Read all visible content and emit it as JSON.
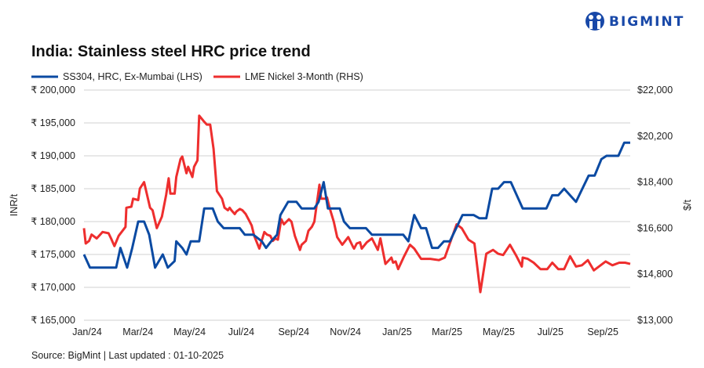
{
  "logo": {
    "text": "BIGMINT",
    "color": "#1848a8"
  },
  "chart_data": {
    "type": "line",
    "title": "India: Stainless steel HRC price trend",
    "source": "Source: BigMint | Last updated : 01-10-2025",
    "ylabel_left": "INR/t",
    "ylabel_right": "$/t",
    "left_axis": {
      "min": 165000,
      "max": 200000,
      "ticks": [
        165000,
        170000,
        175000,
        180000,
        185000,
        190000,
        195000,
        200000
      ],
      "tick_labels": [
        "₹ 165,000",
        "₹ 170,000",
        "₹ 175,000",
        "₹ 180,000",
        "₹ 185,000",
        "₹ 190,000",
        "₹ 195,000",
        "₹ 200,000"
      ]
    },
    "right_axis": {
      "min": 13000,
      "max": 22000,
      "ticks": [
        13000,
        14800,
        16600,
        18400,
        20200,
        22000
      ],
      "tick_labels": [
        "$13,000",
        "$14,800",
        "$16,600",
        "$18,400",
        "$20,200",
        "$22,000"
      ]
    },
    "x_axis": {
      "min": "2024-01-01",
      "max": "2025-10-07",
      "ticks": [
        "2024-01-01",
        "2024-03-01",
        "2024-05-01",
        "2024-07-01",
        "2024-09-01",
        "2024-11-01",
        "2025-01-01",
        "2025-03-01",
        "2025-05-01",
        "2025-07-01",
        "2025-09-01"
      ],
      "tick_labels": [
        "Jan/24",
        "Mar/24",
        "May/24",
        "Jul/24",
        "Sep/24",
        "Nov/24",
        "Jan/25",
        "Mar/25",
        "May/25",
        "Jul/25",
        "Sep/25"
      ]
    },
    "grid": true,
    "legend_position": "top-left",
    "series": [
      {
        "name": "SS304, HRC, Ex-Mumbai (LHS)",
        "axis": "left",
        "color": "#0b4aa2",
        "points": [
          [
            "2024-01-01",
            175000
          ],
          [
            "2024-01-08",
            173000
          ],
          [
            "2024-02-08",
            173000
          ],
          [
            "2024-02-13",
            176000
          ],
          [
            "2024-02-21",
            173000
          ],
          [
            "2024-02-27",
            176000
          ],
          [
            "2024-03-05",
            180000
          ],
          [
            "2024-03-12",
            180000
          ],
          [
            "2024-03-18",
            178000
          ],
          [
            "2024-03-25",
            173000
          ],
          [
            "2024-04-03",
            175000
          ],
          [
            "2024-04-09",
            173000
          ],
          [
            "2024-04-17",
            174000
          ],
          [
            "2024-04-19",
            177000
          ],
          [
            "2024-04-26",
            176000
          ],
          [
            "2024-05-01",
            175000
          ],
          [
            "2024-05-06",
            177000
          ],
          [
            "2024-05-16",
            177000
          ],
          [
            "2024-05-22",
            182000
          ],
          [
            "2024-06-01",
            182000
          ],
          [
            "2024-06-07",
            180000
          ],
          [
            "2024-06-14",
            179000
          ],
          [
            "2024-07-03",
            179000
          ],
          [
            "2024-07-09",
            178000
          ],
          [
            "2024-07-19",
            178000
          ],
          [
            "2024-07-29",
            177000
          ],
          [
            "2024-08-03",
            176000
          ],
          [
            "2024-08-09",
            177000
          ],
          [
            "2024-08-16",
            178000
          ],
          [
            "2024-08-20",
            181000
          ],
          [
            "2024-08-29",
            183000
          ],
          [
            "2024-09-08",
            183000
          ],
          [
            "2024-09-14",
            182000
          ],
          [
            "2024-09-29",
            182000
          ],
          [
            "2024-10-04",
            183000
          ],
          [
            "2024-10-10",
            186000
          ],
          [
            "2024-10-15",
            182000
          ],
          [
            "2024-10-29",
            182000
          ],
          [
            "2024-11-03",
            180000
          ],
          [
            "2024-11-10",
            179000
          ],
          [
            "2024-11-29",
            179000
          ],
          [
            "2024-12-06",
            178000
          ],
          [
            "2025-01-12",
            178000
          ],
          [
            "2025-01-18",
            177000
          ],
          [
            "2025-01-25",
            181000
          ],
          [
            "2025-02-02",
            179000
          ],
          [
            "2025-02-08",
            179000
          ],
          [
            "2025-02-15",
            176000
          ],
          [
            "2025-02-22",
            176000
          ],
          [
            "2025-03-01",
            177000
          ],
          [
            "2025-03-08",
            177000
          ],
          [
            "2025-03-23",
            181000
          ],
          [
            "2025-04-05",
            181000
          ],
          [
            "2025-04-12",
            180500
          ],
          [
            "2025-04-20",
            180500
          ],
          [
            "2025-04-27",
            185000
          ],
          [
            "2025-05-04",
            185000
          ],
          [
            "2025-05-11",
            186000
          ],
          [
            "2025-05-19",
            186000
          ],
          [
            "2025-06-02",
            182000
          ],
          [
            "2025-06-30",
            182000
          ],
          [
            "2025-07-07",
            184000
          ],
          [
            "2025-07-14",
            184000
          ],
          [
            "2025-07-21",
            185000
          ],
          [
            "2025-08-04",
            183000
          ],
          [
            "2025-08-19",
            187000
          ],
          [
            "2025-08-26",
            187000
          ],
          [
            "2025-09-03",
            189500
          ],
          [
            "2025-09-09",
            190000
          ],
          [
            "2025-09-23",
            190000
          ],
          [
            "2025-09-30",
            192000
          ],
          [
            "2025-10-07",
            192000
          ]
        ]
      },
      {
        "name": "LME Nickel 3-Month (RHS)",
        "axis": "right",
        "color": "#ee2e2e",
        "points": [
          [
            "2024-01-01",
            16600
          ],
          [
            "2024-01-03",
            16000
          ],
          [
            "2024-01-07",
            16100
          ],
          [
            "2024-01-10",
            16350
          ],
          [
            "2024-01-16",
            16200
          ],
          [
            "2024-01-23",
            16450
          ],
          [
            "2024-01-30",
            16400
          ],
          [
            "2024-02-02",
            16200
          ],
          [
            "2024-02-06",
            15900
          ],
          [
            "2024-02-11",
            16300
          ],
          [
            "2024-02-19",
            16650
          ],
          [
            "2024-02-20",
            17400
          ],
          [
            "2024-02-26",
            17440
          ],
          [
            "2024-02-28",
            17750
          ],
          [
            "2024-03-05",
            17700
          ],
          [
            "2024-03-07",
            18150
          ],
          [
            "2024-03-12",
            18400
          ],
          [
            "2024-03-19",
            17400
          ],
          [
            "2024-03-22",
            17300
          ],
          [
            "2024-03-27",
            16600
          ],
          [
            "2024-04-02",
            17050
          ],
          [
            "2024-04-07",
            17900
          ],
          [
            "2024-04-10",
            18550
          ],
          [
            "2024-04-12",
            17950
          ],
          [
            "2024-04-17",
            17950
          ],
          [
            "2024-04-19",
            18600
          ],
          [
            "2024-04-24",
            19300
          ],
          [
            "2024-04-26",
            19400
          ],
          [
            "2024-05-01",
            18750
          ],
          [
            "2024-05-03",
            19000
          ],
          [
            "2024-05-08",
            18600
          ],
          [
            "2024-05-10",
            19000
          ],
          [
            "2024-05-14",
            19250
          ],
          [
            "2024-05-16",
            21000
          ],
          [
            "2024-05-21",
            20800
          ],
          [
            "2024-05-25",
            20650
          ],
          [
            "2024-05-29",
            20650
          ],
          [
            "2024-06-02",
            19700
          ],
          [
            "2024-06-06",
            18050
          ],
          [
            "2024-06-12",
            17750
          ],
          [
            "2024-06-15",
            17400
          ],
          [
            "2024-06-19",
            17300
          ],
          [
            "2024-06-21",
            17400
          ],
          [
            "2024-06-23",
            17300
          ],
          [
            "2024-06-27",
            17150
          ],
          [
            "2024-06-29",
            17250
          ],
          [
            "2024-07-03",
            17350
          ],
          [
            "2024-07-06",
            17300
          ],
          [
            "2024-07-10",
            17150
          ],
          [
            "2024-07-14",
            16900
          ],
          [
            "2024-07-17",
            16700
          ],
          [
            "2024-07-20",
            16300
          ],
          [
            "2024-07-26",
            15800
          ],
          [
            "2024-08-01",
            16450
          ],
          [
            "2024-08-04",
            16350
          ],
          [
            "2024-08-08",
            16300
          ],
          [
            "2024-08-11",
            16100
          ],
          [
            "2024-08-14",
            16200
          ],
          [
            "2024-08-17",
            16150
          ],
          [
            "2024-08-21",
            16950
          ],
          [
            "2024-08-24",
            16750
          ],
          [
            "2024-08-30",
            16950
          ],
          [
            "2024-09-02",
            16850
          ],
          [
            "2024-09-06",
            16300
          ],
          [
            "2024-09-12",
            15750
          ],
          [
            "2024-09-14",
            15950
          ],
          [
            "2024-09-19",
            16100
          ],
          [
            "2024-09-22",
            16500
          ],
          [
            "2024-09-26",
            16650
          ],
          [
            "2024-09-29",
            16850
          ],
          [
            "2024-10-05",
            18300
          ],
          [
            "2024-10-07",
            17750
          ],
          [
            "2024-10-12",
            17750
          ],
          [
            "2024-10-14",
            17800
          ],
          [
            "2024-10-17",
            17400
          ],
          [
            "2024-10-22",
            16850
          ],
          [
            "2024-10-26",
            16250
          ],
          [
            "2024-11-01",
            15950
          ],
          [
            "2024-11-08",
            16250
          ],
          [
            "2024-11-14",
            15850
          ],
          [
            "2024-11-15",
            15800
          ],
          [
            "2024-11-18",
            16000
          ],
          [
            "2024-11-22",
            16050
          ],
          [
            "2024-11-24",
            15800
          ],
          [
            "2024-11-30",
            16050
          ],
          [
            "2024-12-06",
            16200
          ],
          [
            "2024-12-13",
            15750
          ],
          [
            "2024-12-16",
            16200
          ],
          [
            "2024-12-22",
            15200
          ],
          [
            "2024-12-29",
            15450
          ],
          [
            "2024-12-31",
            15250
          ],
          [
            "2025-01-03",
            15300
          ],
          [
            "2025-01-06",
            15000
          ],
          [
            "2025-01-13",
            15500
          ],
          [
            "2025-01-20",
            15950
          ],
          [
            "2025-01-25",
            15800
          ],
          [
            "2025-02-02",
            15400
          ],
          [
            "2025-02-13",
            15400
          ],
          [
            "2025-02-23",
            15350
          ],
          [
            "2025-03-02",
            15450
          ],
          [
            "2025-03-16",
            16750
          ],
          [
            "2025-03-22",
            16600
          ],
          [
            "2025-03-30",
            16150
          ],
          [
            "2025-04-06",
            16000
          ],
          [
            "2025-04-13",
            14100
          ],
          [
            "2025-04-20",
            15600
          ],
          [
            "2025-04-28",
            15750
          ],
          [
            "2025-05-04",
            15600
          ],
          [
            "2025-05-10",
            15550
          ],
          [
            "2025-05-18",
            15950
          ],
          [
            "2025-05-25",
            15550
          ],
          [
            "2025-06-01",
            15100
          ],
          [
            "2025-06-02",
            15450
          ],
          [
            "2025-06-08",
            15400
          ],
          [
            "2025-06-15",
            15250
          ],
          [
            "2025-06-23",
            15000
          ],
          [
            "2025-07-01",
            15000
          ],
          [
            "2025-07-07",
            15250
          ],
          [
            "2025-07-14",
            15000
          ],
          [
            "2025-07-21",
            15000
          ],
          [
            "2025-07-28",
            15500
          ],
          [
            "2025-08-04",
            15100
          ],
          [
            "2025-08-11",
            15150
          ],
          [
            "2025-08-18",
            15350
          ],
          [
            "2025-08-25",
            14950
          ],
          [
            "2025-09-08",
            15300
          ],
          [
            "2025-09-16",
            15150
          ],
          [
            "2025-09-24",
            15250
          ],
          [
            "2025-10-01",
            15250
          ],
          [
            "2025-10-07",
            15200
          ]
        ]
      }
    ]
  }
}
